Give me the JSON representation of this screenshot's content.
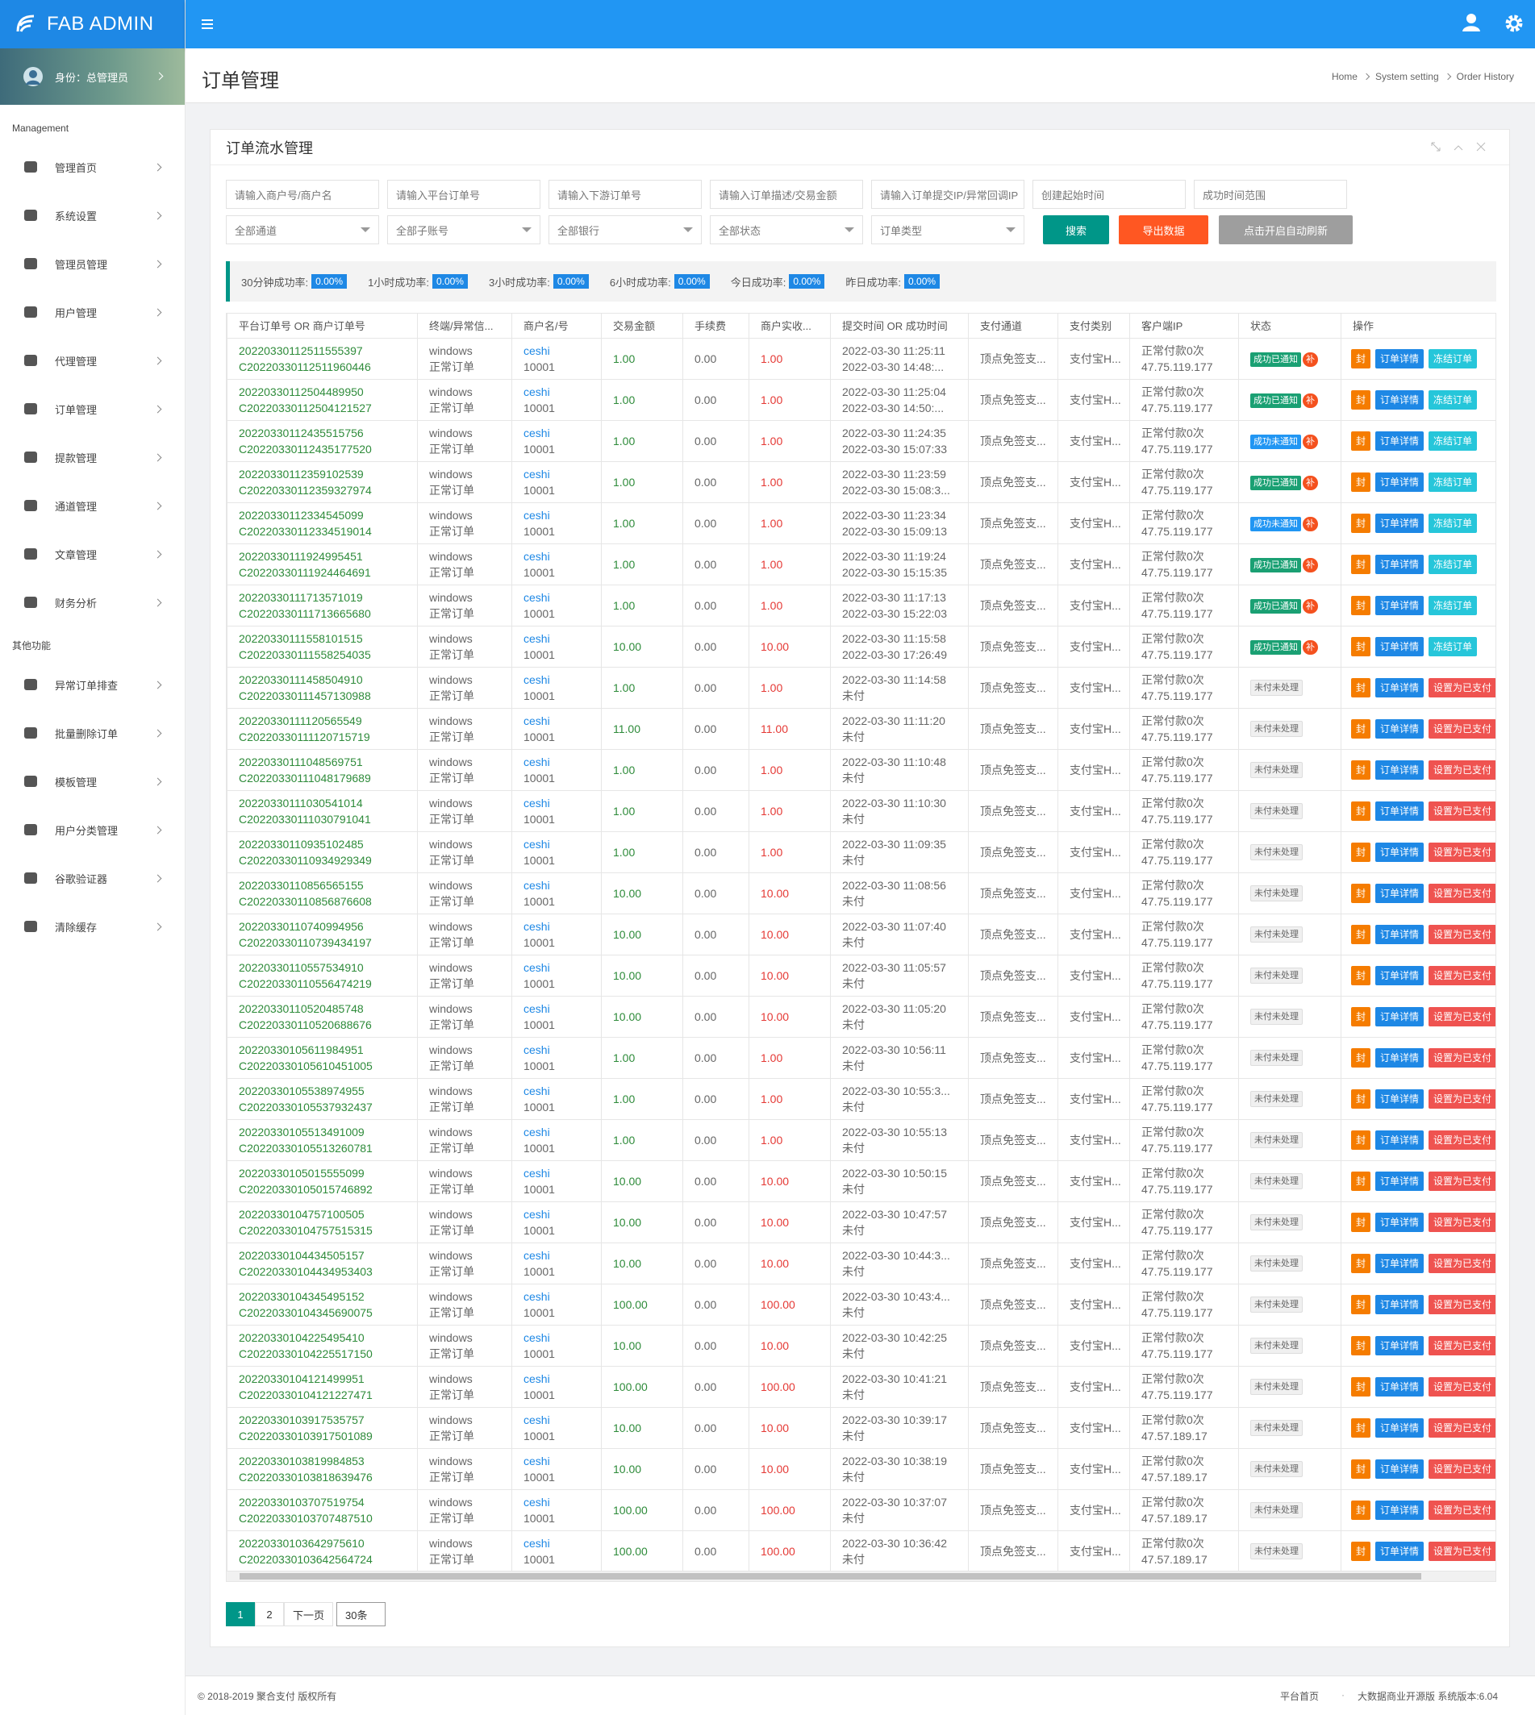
{
  "sidebar": {
    "brand": "FAB ADMIN",
    "identity": "身份：总管理员",
    "section1": "Management",
    "menu1": [
      "管理首页",
      "系统设置",
      "管理员管理",
      "用户管理",
      "代理管理",
      "订单管理",
      "提款管理",
      "通道管理",
      "文章管理",
      "财务分析"
    ],
    "section2": "其他功能",
    "menu2": [
      "异常订单排查",
      "批量删除订单",
      "模板管理",
      "用户分类管理",
      "谷歌验证器",
      "清除缓存"
    ]
  },
  "header": {
    "title": "订单管理",
    "breadcrumb": [
      "Home",
      "System setting",
      "Order History"
    ]
  },
  "panel": {
    "title": "订单流水管理"
  },
  "filters": {
    "inputs": [
      "请输入商户号/商户名",
      "请输入平台订单号",
      "请输入下游订单号",
      "请输入订单描述/交易金额",
      "请输入订单提交IP/异常回调IP",
      "创建起始时间",
      "成功时间范围"
    ],
    "selects": [
      "全部通道",
      "全部子账号",
      "全部银行",
      "全部状态",
      "订单类型"
    ],
    "buttons": [
      "搜索",
      "导出数据",
      "点击开启自动刷新"
    ]
  },
  "stats": [
    {
      "label": "30分钟成功率:",
      "value": "0.00%"
    },
    {
      "label": "1小时成功率:",
      "value": "0.00%"
    },
    {
      "label": "3小时成功率:",
      "value": "0.00%"
    },
    {
      "label": "6小时成功率:",
      "value": "0.00%"
    },
    {
      "label": "今日成功率:",
      "value": "0.00%"
    },
    {
      "label": "昨日成功率:",
      "value": "0.00%"
    }
  ],
  "table": {
    "headers": [
      "平台订单号 OR 商户订单号",
      "终端/异常信...",
      "商户名/号",
      "交易金额",
      "手续费",
      "商户实收...",
      "提交时间 OR 成功时间",
      "支付通道",
      "支付类别",
      "客户端IP",
      "状态",
      "操作"
    ],
    "rows": [
      [
        "20220330112511555397",
        "C20220330112511960446",
        "windows",
        "正常订单",
        "ceshi",
        "10001",
        "1.00",
        "0.00",
        "1.00",
        "2022-03-30 11:25:11",
        "2022-03-30 14:48:...",
        "顶点免签支...",
        "支付宝H...",
        "正常付款0次",
        "47.75.119.177",
        [
          "成功已通知",
          "补"
        ],
        [
          "封",
          "订单详情",
          "冻结订单"
        ]
      ],
      [
        "20220330112504489950",
        "C20220330112504121527",
        "windows",
        "正常订单",
        "ceshi",
        "10001",
        "1.00",
        "0.00",
        "1.00",
        "2022-03-30 11:25:04",
        "2022-03-30 14:50:...",
        "顶点免签支...",
        "支付宝H...",
        "正常付款0次",
        "47.75.119.177",
        [
          "成功已通知",
          "补"
        ],
        [
          "封",
          "订单详情",
          "冻结订单"
        ]
      ],
      [
        "20220330112435515756",
        "C20220330112435177520",
        "windows",
        "正常订单",
        "ceshi",
        "10001",
        "1.00",
        "0.00",
        "1.00",
        "2022-03-30 11:24:35",
        "2022-03-30 15:07:33",
        "顶点免签支...",
        "支付宝H...",
        "正常付款0次",
        "47.75.119.177",
        [
          "成功未通知",
          "补"
        ],
        [
          "封",
          "订单详情",
          "冻结订单"
        ]
      ],
      [
        "20220330112359102539",
        "C20220330112359327974",
        "windows",
        "正常订单",
        "ceshi",
        "10001",
        "1.00",
        "0.00",
        "1.00",
        "2022-03-30 11:23:59",
        "2022-03-30 15:08:3...",
        "顶点免签支...",
        "支付宝H...",
        "正常付款0次",
        "47.75.119.177",
        [
          "成功已通知",
          "补"
        ],
        [
          "封",
          "订单详情",
          "冻结订单"
        ]
      ],
      [
        "20220330112334545099",
        "C20220330112334519014",
        "windows",
        "正常订单",
        "ceshi",
        "10001",
        "1.00",
        "0.00",
        "1.00",
        "2022-03-30 11:23:34",
        "2022-03-30 15:09:13",
        "顶点免签支...",
        "支付宝H...",
        "正常付款0次",
        "47.75.119.177",
        [
          "成功未通知",
          "补"
        ],
        [
          "封",
          "订单详情",
          "冻结订单"
        ]
      ],
      [
        "20220330111924995451",
        "C20220330111924464691",
        "windows",
        "正常订单",
        "ceshi",
        "10001",
        "1.00",
        "0.00",
        "1.00",
        "2022-03-30 11:19:24",
        "2022-03-30 15:15:35",
        "顶点免签支...",
        "支付宝H...",
        "正常付款0次",
        "47.75.119.177",
        [
          "成功已通知",
          "补"
        ],
        [
          "封",
          "订单详情",
          "冻结订单"
        ]
      ],
      [
        "20220330111713571019",
        "C20220330111713665680",
        "windows",
        "正常订单",
        "ceshi",
        "10001",
        "1.00",
        "0.00",
        "1.00",
        "2022-03-30 11:17:13",
        "2022-03-30 15:22:03",
        "顶点免签支...",
        "支付宝H...",
        "正常付款0次",
        "47.75.119.177",
        [
          "成功已通知",
          "补"
        ],
        [
          "封",
          "订单详情",
          "冻结订单"
        ]
      ],
      [
        "20220330111558101515",
        "C20220330111558254035",
        "windows",
        "正常订单",
        "ceshi",
        "10001",
        "10.00",
        "0.00",
        "10.00",
        "2022-03-30 11:15:58",
        "2022-03-30 17:26:49",
        "顶点免签支...",
        "支付宝H...",
        "正常付款0次",
        "47.75.119.177",
        [
          "成功已通知",
          "补"
        ],
        [
          "封",
          "订单详情",
          "冻结订单"
        ]
      ],
      [
        "20220330111458504910",
        "C20220330111457130988",
        "windows",
        "正常订单",
        "ceshi",
        "10001",
        "1.00",
        "0.00",
        "1.00",
        "2022-03-30 11:14:58",
        "未付",
        "顶点免签支...",
        "支付宝H...",
        "正常付款0次",
        "47.75.119.177",
        [
          "未付未处理"
        ],
        [
          "封",
          "订单详情",
          "设置为已支付"
        ]
      ],
      [
        "20220330111120565549",
        "C20220330111120715719",
        "windows",
        "正常订单",
        "ceshi",
        "10001",
        "11.00",
        "0.00",
        "11.00",
        "2022-03-30 11:11:20",
        "未付",
        "顶点免签支...",
        "支付宝H...",
        "正常付款0次",
        "47.75.119.177",
        [
          "未付未处理"
        ],
        [
          "封",
          "订单详情",
          "设置为已支付"
        ]
      ],
      [
        "20220330111048569751",
        "C20220330111048179689",
        "windows",
        "正常订单",
        "ceshi",
        "10001",
        "1.00",
        "0.00",
        "1.00",
        "2022-03-30 11:10:48",
        "未付",
        "顶点免签支...",
        "支付宝H...",
        "正常付款0次",
        "47.75.119.177",
        [
          "未付未处理"
        ],
        [
          "封",
          "订单详情",
          "设置为已支付"
        ]
      ],
      [
        "20220330111030541014",
        "C20220330111030791041",
        "windows",
        "正常订单",
        "ceshi",
        "10001",
        "1.00",
        "0.00",
        "1.00",
        "2022-03-30 11:10:30",
        "未付",
        "顶点免签支...",
        "支付宝H...",
        "正常付款0次",
        "47.75.119.177",
        [
          "未付未处理"
        ],
        [
          "封",
          "订单详情",
          "设置为已支付"
        ]
      ],
      [
        "20220330110935102485",
        "C20220330110934929349",
        "windows",
        "正常订单",
        "ceshi",
        "10001",
        "1.00",
        "0.00",
        "1.00",
        "2022-03-30 11:09:35",
        "未付",
        "顶点免签支...",
        "支付宝H...",
        "正常付款0次",
        "47.75.119.177",
        [
          "未付未处理"
        ],
        [
          "封",
          "订单详情",
          "设置为已支付"
        ]
      ],
      [
        "20220330110856565155",
        "C20220330110856876608",
        "windows",
        "正常订单",
        "ceshi",
        "10001",
        "10.00",
        "0.00",
        "10.00",
        "2022-03-30 11:08:56",
        "未付",
        "顶点免签支...",
        "支付宝H...",
        "正常付款0次",
        "47.75.119.177",
        [
          "未付未处理"
        ],
        [
          "封",
          "订单详情",
          "设置为已支付"
        ]
      ],
      [
        "20220330110740994956",
        "C20220330110739434197",
        "windows",
        "正常订单",
        "ceshi",
        "10001",
        "10.00",
        "0.00",
        "10.00",
        "2022-03-30 11:07:40",
        "未付",
        "顶点免签支...",
        "支付宝H...",
        "正常付款0次",
        "47.75.119.177",
        [
          "未付未处理"
        ],
        [
          "封",
          "订单详情",
          "设置为已支付"
        ]
      ],
      [
        "20220330110557534910",
        "C20220330110556474219",
        "windows",
        "正常订单",
        "ceshi",
        "10001",
        "10.00",
        "0.00",
        "10.00",
        "2022-03-30 11:05:57",
        "未付",
        "顶点免签支...",
        "支付宝H...",
        "正常付款0次",
        "47.75.119.177",
        [
          "未付未处理"
        ],
        [
          "封",
          "订单详情",
          "设置为已支付"
        ]
      ],
      [
        "20220330110520485748",
        "C20220330110520688676",
        "windows",
        "正常订单",
        "ceshi",
        "10001",
        "10.00",
        "0.00",
        "10.00",
        "2022-03-30 11:05:20",
        "未付",
        "顶点免签支...",
        "支付宝H...",
        "正常付款0次",
        "47.75.119.177",
        [
          "未付未处理"
        ],
        [
          "封",
          "订单详情",
          "设置为已支付"
        ]
      ],
      [
        "20220330105611984951",
        "C20220330105610451005",
        "windows",
        "正常订单",
        "ceshi",
        "10001",
        "1.00",
        "0.00",
        "1.00",
        "2022-03-30 10:56:11",
        "未付",
        "顶点免签支...",
        "支付宝H...",
        "正常付款0次",
        "47.75.119.177",
        [
          "未付未处理"
        ],
        [
          "封",
          "订单详情",
          "设置为已支付"
        ]
      ],
      [
        "20220330105538974955",
        "C20220330105537932437",
        "windows",
        "正常订单",
        "ceshi",
        "10001",
        "1.00",
        "0.00",
        "1.00",
        "2022-03-30 10:55:3...",
        "未付",
        "顶点免签支...",
        "支付宝H...",
        "正常付款0次",
        "47.75.119.177",
        [
          "未付未处理"
        ],
        [
          "封",
          "订单详情",
          "设置为已支付"
        ]
      ],
      [
        "20220330105513491009",
        "C20220330105513260781",
        "windows",
        "正常订单",
        "ceshi",
        "10001",
        "1.00",
        "0.00",
        "1.00",
        "2022-03-30 10:55:13",
        "未付",
        "顶点免签支...",
        "支付宝H...",
        "正常付款0次",
        "47.75.119.177",
        [
          "未付未处理"
        ],
        [
          "封",
          "订单详情",
          "设置为已支付"
        ]
      ],
      [
        "20220330105015555099",
        "C20220330105015746892",
        "windows",
        "正常订单",
        "ceshi",
        "10001",
        "10.00",
        "0.00",
        "10.00",
        "2022-03-30 10:50:15",
        "未付",
        "顶点免签支...",
        "支付宝H...",
        "正常付款0次",
        "47.75.119.177",
        [
          "未付未处理"
        ],
        [
          "封",
          "订单详情",
          "设置为已支付"
        ]
      ],
      [
        "20220330104757100505",
        "C20220330104757515315",
        "windows",
        "正常订单",
        "ceshi",
        "10001",
        "10.00",
        "0.00",
        "10.00",
        "2022-03-30 10:47:57",
        "未付",
        "顶点免签支...",
        "支付宝H...",
        "正常付款0次",
        "47.75.119.177",
        [
          "未付未处理"
        ],
        [
          "封",
          "订单详情",
          "设置为已支付"
        ]
      ],
      [
        "20220330104434505157",
        "C20220330104434953403",
        "windows",
        "正常订单",
        "ceshi",
        "10001",
        "10.00",
        "0.00",
        "10.00",
        "2022-03-30 10:44:3...",
        "未付",
        "顶点免签支...",
        "支付宝H...",
        "正常付款0次",
        "47.75.119.177",
        [
          "未付未处理"
        ],
        [
          "封",
          "订单详情",
          "设置为已支付"
        ]
      ],
      [
        "20220330104345495152",
        "C20220330104345690075",
        "windows",
        "正常订单",
        "ceshi",
        "10001",
        "100.00",
        "0.00",
        "100.00",
        "2022-03-30 10:43:4...",
        "未付",
        "顶点免签支...",
        "支付宝H...",
        "正常付款0次",
        "47.75.119.177",
        [
          "未付未处理"
        ],
        [
          "封",
          "订单详情",
          "设置为已支付"
        ]
      ],
      [
        "20220330104225495410",
        "C20220330104225517150",
        "windows",
        "正常订单",
        "ceshi",
        "10001",
        "10.00",
        "0.00",
        "10.00",
        "2022-03-30 10:42:25",
        "未付",
        "顶点免签支...",
        "支付宝H...",
        "正常付款0次",
        "47.75.119.177",
        [
          "未付未处理"
        ],
        [
          "封",
          "订单详情",
          "设置为已支付"
        ]
      ],
      [
        "20220330104121499951",
        "C20220330104121227471",
        "windows",
        "正常订单",
        "ceshi",
        "10001",
        "100.00",
        "0.00",
        "100.00",
        "2022-03-30 10:41:21",
        "未付",
        "顶点免签支...",
        "支付宝H...",
        "正常付款0次",
        "47.75.119.177",
        [
          "未付未处理"
        ],
        [
          "封",
          "订单详情",
          "设置为已支付"
        ]
      ],
      [
        "20220330103917535757",
        "C20220330103917501089",
        "windows",
        "正常订单",
        "ceshi",
        "10001",
        "10.00",
        "0.00",
        "10.00",
        "2022-03-30 10:39:17",
        "未付",
        "顶点免签支...",
        "支付宝H...",
        "正常付款0次",
        "47.57.189.17",
        [
          "未付未处理"
        ],
        [
          "封",
          "订单详情",
          "设置为已支付"
        ]
      ],
      [
        "20220330103819984853",
        "C20220330103818639476",
        "windows",
        "正常订单",
        "ceshi",
        "10001",
        "10.00",
        "0.00",
        "10.00",
        "2022-03-30 10:38:19",
        "未付",
        "顶点免签支...",
        "支付宝H...",
        "正常付款0次",
        "47.57.189.17",
        [
          "未付未处理"
        ],
        [
          "封",
          "订单详情",
          "设置为已支付"
        ]
      ],
      [
        "20220330103707519754",
        "C20220330103707487510",
        "windows",
        "正常订单",
        "ceshi",
        "10001",
        "100.00",
        "0.00",
        "100.00",
        "2022-03-30 10:37:07",
        "未付",
        "顶点免签支...",
        "支付宝H...",
        "正常付款0次",
        "47.57.189.17",
        [
          "未付未处理"
        ],
        [
          "封",
          "订单详情",
          "设置为已支付"
        ]
      ],
      [
        "20220330103642975610",
        "C20220330103642564724",
        "windows",
        "正常订单",
        "ceshi",
        "10001",
        "100.00",
        "0.00",
        "100.00",
        "2022-03-30 10:36:42",
        "未付",
        "顶点免签支...",
        "支付宝H...",
        "正常付款0次",
        "47.57.189.17",
        [
          "未付未处理"
        ],
        [
          "封",
          "订单详情",
          "设置为已支付"
        ]
      ]
    ]
  },
  "pagination": {
    "pages": [
      "1",
      "2"
    ],
    "next": "下一页",
    "size": "30条"
  },
  "footer": {
    "copyright": "© 2018-2019 聚合支付 版权所有",
    "links": [
      "平台首页",
      "大数据商业开源版 系统版本:6.04"
    ]
  }
}
